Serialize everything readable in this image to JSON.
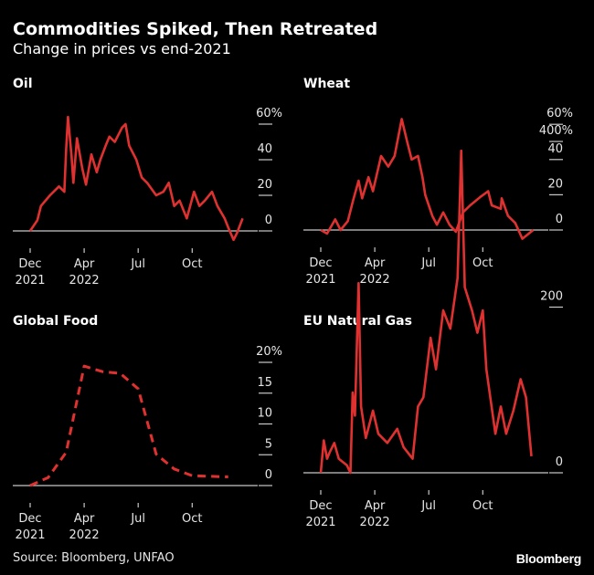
{
  "header": {
    "title": "Commodities Spiked, Then Retreated",
    "subtitle": "Change in prices vs end-2021"
  },
  "footer": {
    "source": "Source: Bloomberg, UNFAO",
    "logo": "Bloomberg"
  },
  "colors": {
    "line": "#e03131",
    "axis": "#c8c8c8",
    "background": "#000000",
    "text": "#ffffff"
  },
  "chart_data": [
    {
      "type": "line",
      "title": "Oil",
      "x_unit": "months since end-Dec 2021",
      "x_ticks": [
        {
          "month": 0,
          "label": "Dec",
          "label2": "2021"
        },
        {
          "month": 3,
          "label": "Apr",
          "label2": "2022"
        },
        {
          "month": 6,
          "label": "Jul",
          "label2": ""
        },
        {
          "month": 9,
          "label": "Oct",
          "label2": ""
        }
      ],
      "y_ticks": [
        {
          "value": 0,
          "label": "0"
        },
        {
          "value": 20,
          "label": "20"
        },
        {
          "value": 40,
          "label": "40"
        },
        {
          "value": 60,
          "label": "60%"
        }
      ],
      "ylim": [
        -10,
        65
      ],
      "dashed": false,
      "x": [
        0,
        0.4,
        0.6,
        1.1,
        1.6,
        1.9,
        2.0,
        2.1,
        2.3,
        2.4,
        2.6,
        2.9,
        3.1,
        3.4,
        3.7,
        3.9,
        4.2,
        4.4,
        4.7,
        5.1,
        5.3,
        5.5,
        5.9,
        6.2,
        6.5,
        7.0,
        7.4,
        7.7,
        8.0,
        8.3,
        8.7,
        9.1,
        9.4,
        9.7,
        10.1,
        10.4,
        10.8,
        11.0,
        11.3,
        11.5,
        11.8
      ],
      "y": [
        0,
        6,
        14,
        20,
        25,
        22,
        46,
        64,
        42,
        27,
        52,
        35,
        26,
        43,
        33,
        40,
        48,
        53,
        50,
        58,
        60,
        48,
        40,
        30,
        27,
        20,
        22,
        27,
        14,
        17,
        7,
        22,
        14,
        17,
        22,
        14,
        7,
        2,
        -5,
        -1,
        7
      ]
    },
    {
      "type": "line",
      "title": "Wheat",
      "x_unit": "months since end-Dec 2021",
      "x_ticks": [
        {
          "month": 0,
          "label": "Dec",
          "label2": "2021"
        },
        {
          "month": 3,
          "label": "Apr",
          "label2": "2022"
        },
        {
          "month": 6,
          "label": "Jul",
          "label2": ""
        },
        {
          "month": 9,
          "label": "Oct",
          "label2": ""
        }
      ],
      "y_ticks": [
        {
          "value": 0,
          "label": "0"
        },
        {
          "value": 20,
          "label": "20"
        },
        {
          "value": 40,
          "label": "40"
        },
        {
          "value": 60,
          "label": "60%"
        }
      ],
      "ylim": [
        -10,
        65
      ],
      "dashed": false,
      "x": [
        0,
        0.35,
        0.8,
        1.1,
        1.5,
        1.8,
        2.1,
        2.3,
        2.65,
        2.9,
        3.35,
        3.75,
        4.1,
        4.5,
        4.8,
        5.05,
        5.4,
        5.65,
        5.8,
        6.2,
        6.45,
        6.8,
        7.15,
        7.5,
        7.9,
        8.3,
        8.9,
        9.3,
        9.5,
        10.0,
        10.05,
        10.4,
        10.8,
        11.2,
        11.8
      ],
      "y": [
        0,
        -2,
        6,
        0,
        5,
        17,
        28,
        18,
        30,
        22,
        42,
        36,
        42,
        63,
        50,
        40,
        42,
        30,
        20,
        8,
        3,
        10,
        3,
        -1,
        10,
        14,
        19,
        22,
        14,
        12,
        18,
        8,
        4,
        -5,
        0
      ]
    },
    {
      "type": "line",
      "title": "Global Food",
      "x_unit": "months since end-Dec 2021",
      "x_ticks": [
        {
          "month": 0,
          "label": "Dec",
          "label2": "2021"
        },
        {
          "month": 3,
          "label": "Apr",
          "label2": "2022"
        },
        {
          "month": 6,
          "label": "Jul",
          "label2": ""
        },
        {
          "month": 9,
          "label": "Oct",
          "label2": ""
        }
      ],
      "y_ticks": [
        {
          "value": 0,
          "label": "0"
        },
        {
          "value": 5,
          "label": "5"
        },
        {
          "value": 10,
          "label": "10"
        },
        {
          "value": 15,
          "label": "15"
        },
        {
          "value": 20,
          "label": "20%"
        }
      ],
      "ylim": [
        -1,
        21
      ],
      "dashed": true,
      "x": [
        0,
        1,
        2,
        3,
        4,
        5,
        6,
        7,
        8,
        9,
        10,
        11
      ],
      "y": [
        0,
        1.3,
        5.4,
        19.4,
        18.5,
        18.2,
        15.7,
        5.1,
        2.7,
        1.6,
        1.5,
        1.4
      ]
    },
    {
      "type": "line",
      "title": "EU Natural Gas",
      "x_unit": "months since end-Dec 2021",
      "x_ticks": [
        {
          "month": 0,
          "label": "Dec",
          "label2": "2021"
        },
        {
          "month": 3,
          "label": "Apr",
          "label2": "2022"
        },
        {
          "month": 6,
          "label": "Jul",
          "label2": ""
        },
        {
          "month": 9,
          "label": "Oct",
          "label2": ""
        }
      ],
      "y_ticks": [
        {
          "value": 0,
          "label": "0"
        },
        {
          "value": 200,
          "label": "200"
        },
        {
          "value": 400,
          "label": "400%"
        }
      ],
      "ylim": [
        -10,
        420
      ],
      "dashed": false,
      "x": [
        0,
        0.17,
        0.35,
        0.5,
        0.75,
        1.0,
        1.45,
        1.65,
        1.77,
        1.9,
        2.1,
        2.24,
        2.5,
        2.9,
        3.2,
        3.7,
        4.25,
        4.6,
        5.1,
        5.4,
        5.7,
        6.1,
        6.4,
        6.8,
        7.2,
        7.6,
        7.8,
        8.0,
        8.4,
        8.7,
        9.0,
        9.2,
        9.7,
        10.0,
        10.3,
        10.7,
        11.1,
        11.4,
        11.7
      ],
      "y": [
        0,
        39,
        17,
        25,
        36,
        17,
        9,
        0,
        97,
        69,
        229,
        80,
        42,
        75,
        47,
        36,
        53,
        31,
        17,
        80,
        91,
        163,
        125,
        196,
        174,
        235,
        389,
        224,
        196,
        169,
        196,
        125,
        47,
        80,
        47,
        75,
        113,
        91,
        20
      ]
    }
  ]
}
